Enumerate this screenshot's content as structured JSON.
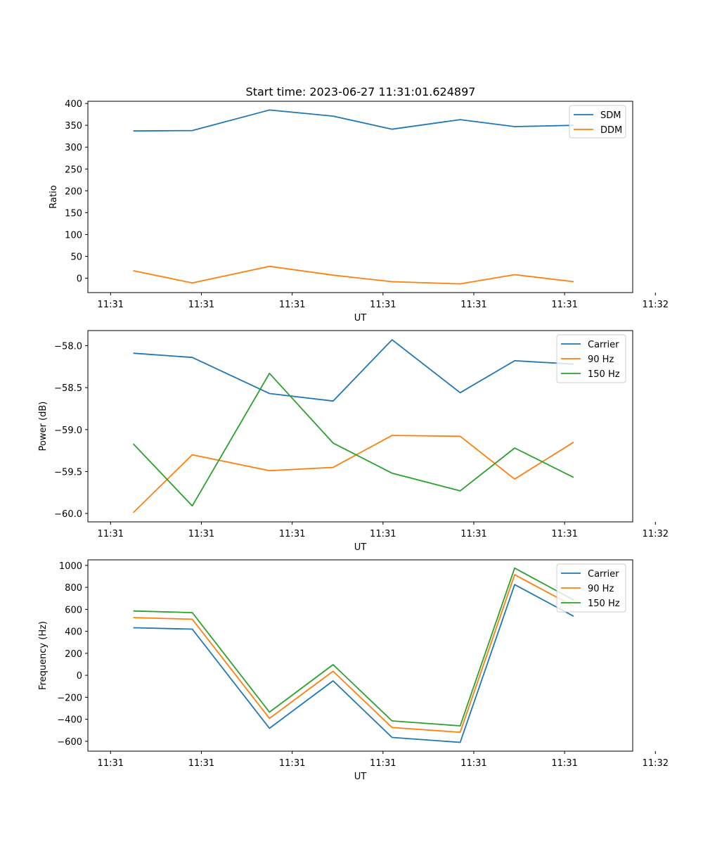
{
  "figure": {
    "title": "Start time: 2023-06-27 11:31:01.624897"
  },
  "chart_data": [
    {
      "type": "line",
      "title": "Start time: 2023-06-27 11:31:01.624897",
      "xlabel": "UT",
      "ylabel": "Ratio",
      "xlim": [
        -0.25,
        5.75
      ],
      "ylim": [
        -33,
        405
      ],
      "xticks": [
        0,
        1,
        2,
        3,
        4,
        5,
        6
      ],
      "xticklabels": [
        "11:31",
        "11:31",
        "11:31",
        "11:31",
        "11:31",
        "11:31",
        "11:32"
      ],
      "yticks": [
        0,
        50,
        100,
        150,
        200,
        250,
        300,
        350,
        400
      ],
      "yticklabels": [
        "0",
        "50",
        "100",
        "150",
        "200",
        "250",
        "300",
        "350",
        "400"
      ],
      "x": [
        0.25,
        0.9,
        1.75,
        2.45,
        3.1,
        3.85,
        4.45,
        5.1
      ],
      "legend": "top-right",
      "series": [
        {
          "name": "SDM",
          "color": "#1f77b4",
          "values": [
            337,
            338,
            385,
            371,
            341,
            363,
            347,
            350
          ]
        },
        {
          "name": "DDM",
          "color": "#ff7f0e",
          "values": [
            17,
            -11,
            27,
            7,
            -8,
            -13,
            8,
            -8
          ]
        }
      ]
    },
    {
      "type": "line",
      "title": "",
      "xlabel": "UT",
      "ylabel": "Power (dB)",
      "xlim": [
        -0.25,
        5.75
      ],
      "ylim": [
        -60.1,
        -57.82
      ],
      "xticks": [
        0,
        1,
        2,
        3,
        4,
        5,
        6
      ],
      "xticklabels": [
        "11:31",
        "11:31",
        "11:31",
        "11:31",
        "11:31",
        "11:31",
        "11:32"
      ],
      "yticks": [
        -60.0,
        -59.5,
        -59.0,
        -58.5,
        -58.0
      ],
      "yticklabels": [
        "−60.0",
        "−59.5",
        "−59.0",
        "−58.5",
        "−58.0"
      ],
      "x": [
        0.25,
        0.9,
        1.75,
        2.45,
        3.1,
        3.85,
        4.45,
        5.1
      ],
      "legend": "top-right",
      "series": [
        {
          "name": "Carrier",
          "color": "#1f77b4",
          "values": [
            -58.09,
            -58.14,
            -58.57,
            -58.66,
            -57.93,
            -58.56,
            -58.18,
            -58.22
          ]
        },
        {
          "name": "90 Hz",
          "color": "#ff7f0e",
          "values": [
            -59.99,
            -59.3,
            -59.49,
            -59.45,
            -59.07,
            -59.08,
            -59.59,
            -59.15
          ]
        },
        {
          "name": "150 Hz",
          "color": "#2ca02c",
          "values": [
            -59.17,
            -59.91,
            -58.33,
            -59.16,
            -59.52,
            -59.73,
            -59.22,
            -59.57
          ]
        }
      ]
    },
    {
      "type": "line",
      "title": "",
      "xlabel": "UT",
      "ylabel": "Frequency (Hz)",
      "xlim": [
        -0.25,
        5.75
      ],
      "ylim": [
        -690,
        1050
      ],
      "xticks": [
        0,
        1,
        2,
        3,
        4,
        5,
        6
      ],
      "xticklabels": [
        "11:31",
        "11:31",
        "11:31",
        "11:31",
        "11:31",
        "11:31",
        "11:32"
      ],
      "yticks": [
        -600,
        -400,
        -200,
        0,
        200,
        400,
        600,
        800,
        1000
      ],
      "yticklabels": [
        "−600",
        "−400",
        "−200",
        "0",
        "200",
        "400",
        "600",
        "800",
        "1000"
      ],
      "x": [
        0.25,
        0.9,
        1.75,
        2.45,
        3.1,
        3.85,
        4.45,
        5.1
      ],
      "legend": "top-right",
      "series": [
        {
          "name": "Carrier",
          "color": "#1f77b4",
          "values": [
            433,
            420,
            -482,
            -50,
            -565,
            -610,
            825,
            537
          ]
        },
        {
          "name": "90 Hz",
          "color": "#ff7f0e",
          "values": [
            525,
            510,
            -392,
            37,
            -475,
            -518,
            915,
            627
          ]
        },
        {
          "name": "150 Hz",
          "color": "#2ca02c",
          "values": [
            585,
            570,
            -335,
            97,
            -415,
            -460,
            975,
            685
          ]
        }
      ]
    }
  ]
}
